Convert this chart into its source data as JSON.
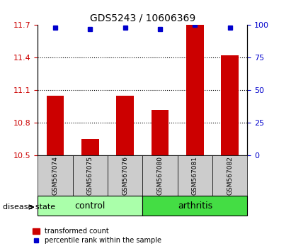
{
  "title": "GDS5243 / 10606369",
  "samples": [
    "GSM567074",
    "GSM567075",
    "GSM567076",
    "GSM567080",
    "GSM567081",
    "GSM567082"
  ],
  "groups": [
    "control",
    "control",
    "control",
    "arthritis",
    "arthritis",
    "arthritis"
  ],
  "bar_values": [
    11.05,
    10.65,
    11.05,
    10.92,
    11.7,
    11.42
  ],
  "percentile_values": [
    98,
    97,
    98,
    97,
    100,
    98
  ],
  "ymin": 10.5,
  "ymax": 11.7,
  "y_ticks_left": [
    10.5,
    10.8,
    11.1,
    11.4,
    11.7
  ],
  "y_ticks_right": [
    0,
    25,
    50,
    75,
    100
  ],
  "bar_color": "#cc0000",
  "dot_color": "#0000cc",
  "control_color": "#aaffaa",
  "arthritis_color": "#44dd44",
  "tick_label_bg": "#cccccc",
  "group_label_control": "control",
  "group_label_arthritis": "arthritis",
  "legend_bar_label": "transformed count",
  "legend_dot_label": "percentile rank within the sample",
  "disease_state_label": "disease state"
}
